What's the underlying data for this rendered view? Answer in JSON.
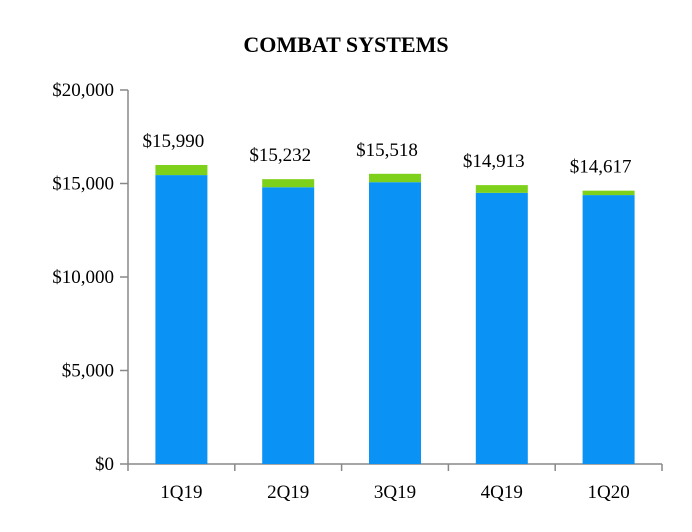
{
  "chart_data": {
    "type": "bar",
    "stacked": true,
    "title": "COMBAT SYSTEMS",
    "xlabel": "",
    "ylabel": "",
    "categories": [
      "1Q19",
      "2Q19",
      "3Q19",
      "4Q19",
      "1Q20"
    ],
    "series": [
      {
        "values": [
          15450,
          14800,
          15070,
          14500,
          14380
        ],
        "color": "#0a93f5"
      },
      {
        "values": [
          540,
          432,
          448,
          413,
          237
        ],
        "color": "#7dd11a"
      }
    ],
    "totals": [
      15990,
      15232,
      15518,
      14913,
      14617
    ],
    "data_labels": [
      "$15,990",
      "$15,232",
      "$15,518",
      "$14,913",
      "$14,617"
    ],
    "ylim": [
      0,
      20000
    ],
    "yticks": [
      0,
      5000,
      10000,
      15000,
      20000
    ],
    "ytick_labels": [
      "$0",
      "$5,000",
      "$10,000",
      "$15,000",
      "$20,000"
    ],
    "grid": false,
    "legend": "none"
  }
}
